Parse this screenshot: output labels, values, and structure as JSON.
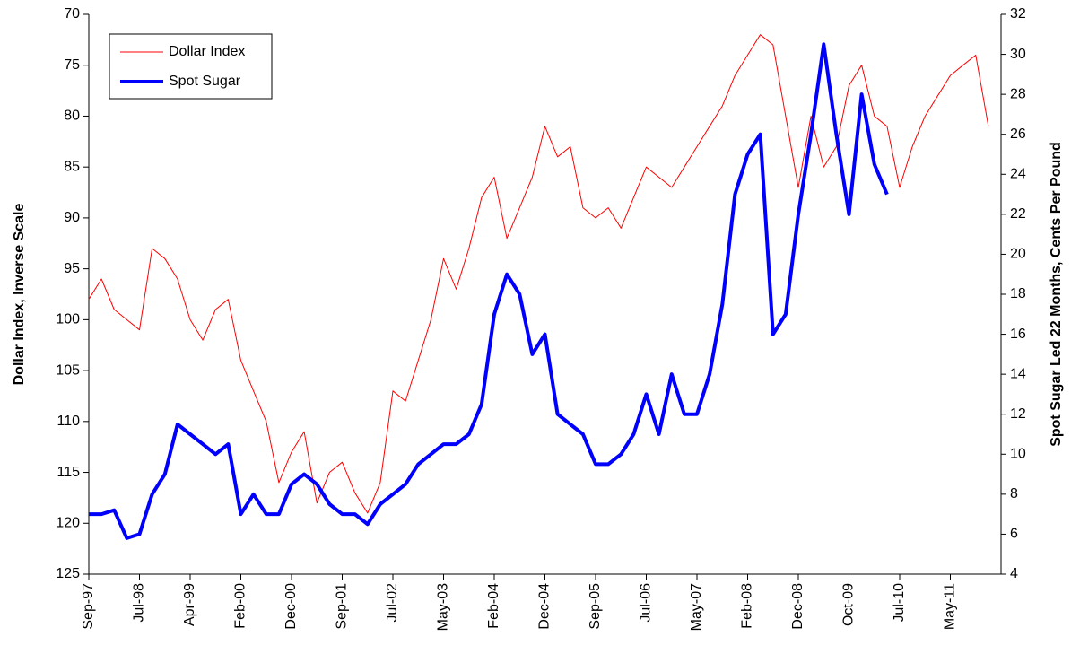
{
  "chart_data": {
    "type": "line",
    "categories": [
      "Sep-97",
      null,
      null,
      null,
      "Jul-98",
      null,
      null,
      null,
      "Apr-99",
      null,
      null,
      null,
      "Feb-00",
      null,
      null,
      null,
      "Dec-00",
      null,
      null,
      null,
      "Sep-01",
      null,
      null,
      null,
      "Jul-02",
      null,
      null,
      null,
      "May-03",
      null,
      null,
      null,
      "Feb-04",
      null,
      null,
      null,
      "Dec-04",
      null,
      null,
      null,
      "Sep-05",
      null,
      null,
      null,
      "Jul-06",
      null,
      null,
      null,
      "May-07",
      null,
      null,
      null,
      "Feb-08",
      null,
      null,
      null,
      "Dec-08",
      null,
      null,
      null,
      "Oct-09",
      null,
      null,
      null,
      "Jul-10",
      null,
      null,
      null,
      "May-11",
      null,
      null,
      null
    ],
    "y_label": "Dollar Index, Inverse Scale",
    "y2_label": "Spot Sugar Led 22 Months, Cents Per Pound",
    "ylim": [
      125,
      70
    ],
    "yticks": [
      70,
      75,
      80,
      85,
      90,
      95,
      100,
      105,
      110,
      115,
      120,
      125
    ],
    "y2lim": [
      4,
      32
    ],
    "y2ticks": [
      4,
      6,
      8,
      10,
      12,
      14,
      16,
      18,
      20,
      22,
      24,
      26,
      28,
      30,
      32
    ],
    "legend": "upper left",
    "series": [
      {
        "name": "Dollar Index",
        "color": "#ff0000",
        "width": 1,
        "values": [
          98,
          96,
          99,
          100,
          101,
          93,
          94,
          96,
          100,
          102,
          99,
          98,
          104,
          107,
          110,
          116,
          113,
          111,
          118,
          115,
          114,
          117,
          119,
          116,
          107,
          108,
          104,
          100,
          94,
          97,
          93,
          88,
          86,
          92,
          89,
          86,
          81,
          84,
          83,
          89,
          90,
          89,
          91,
          88,
          85,
          86,
          87,
          85,
          83,
          81,
          79,
          76,
          74,
          72,
          73,
          80,
          87,
          80,
          85,
          83,
          77,
          75,
          80,
          81,
          87,
          83,
          80,
          78,
          76,
          75,
          74,
          81
        ]
      },
      {
        "name": "Spot Sugar",
        "color": "#0000ff",
        "width": 4,
        "axis": "y2",
        "values": [
          7,
          7,
          7.2,
          5.8,
          6,
          8,
          9,
          11.5,
          11,
          10.5,
          10,
          10.5,
          7,
          8,
          7,
          7,
          8.5,
          9,
          8.5,
          7.5,
          7,
          7,
          6.5,
          7.5,
          8,
          8.5,
          9.5,
          10,
          10.5,
          10.5,
          11,
          12.5,
          17,
          19,
          18,
          15,
          16,
          12,
          11.5,
          11,
          9.5,
          9.5,
          10,
          11,
          13,
          11,
          14,
          12,
          12,
          14,
          17.5,
          23,
          25,
          26,
          16,
          17,
          22,
          26,
          30.5,
          26,
          22,
          28,
          24.5,
          23,
          null,
          null,
          null,
          null,
          null,
          null,
          null,
          null
        ]
      }
    ]
  }
}
